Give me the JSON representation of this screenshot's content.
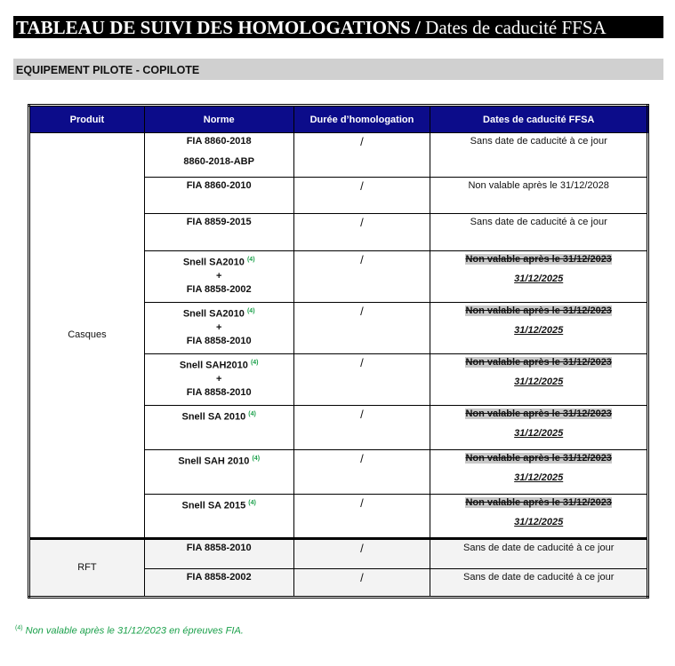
{
  "title": {
    "bold": "TABLEAU DE SUIVI DES HOMOLOGATIONS /",
    "regular": " Dates de caducité FFSA"
  },
  "section": "EQUIPEMENT PILOTE - COPILOTE",
  "headers": [
    "Produit",
    "Norme",
    "Durée d’homologation",
    "Dates de caducité FFSA"
  ],
  "groups": [
    {
      "product": "Casques",
      "rows": [
        {
          "norme": [
            "FIA 8860-2018",
            "8860-2018-ABP"
          ],
          "sup": "",
          "duree": "/",
          "date": "Sans date de caducité à ce jour",
          "struck": "",
          "new": ""
        },
        {
          "norme": [
            "FIA 8860-2010"
          ],
          "sup": "",
          "duree": "/",
          "date": "Non valable après le 31/12/2028",
          "struck": "",
          "new": ""
        },
        {
          "norme": [
            "FIA 8859-2015"
          ],
          "sup": "",
          "duree": "/",
          "date": "Sans date de caducité à ce jour",
          "struck": "",
          "new": ""
        },
        {
          "norme": [
            "Snell SA2010",
            "+",
            "FIA 8858-2002"
          ],
          "sup": "(4)",
          "duree": "/",
          "date": "",
          "struck": "Non valable après le 31/12/2023",
          "new": "31/12/2025"
        },
        {
          "norme": [
            "Snell SA2010",
            "+",
            "FIA 8858-2010"
          ],
          "sup": "(4)",
          "duree": "/",
          "date": "",
          "struck": "Non valable après le 31/12/2023",
          "new": "31/12/2025"
        },
        {
          "norme": [
            "Snell SAH2010",
            "+",
            "FIA 8858-2010"
          ],
          "sup": "(4)",
          "duree": "/",
          "date": "",
          "struck": "Non valable après le 31/12/2023",
          "new": "31/12/2025"
        },
        {
          "norme": [
            "Snell SA 2010"
          ],
          "sup": "(4)",
          "duree": "/",
          "date": "",
          "struck": "Non valable après le 31/12/2023",
          "new": "31/12/2025"
        },
        {
          "norme": [
            "Snell SAH 2010"
          ],
          "sup": "(4)",
          "duree": "/",
          "date": "",
          "struck": "Non valable après le 31/12/2023",
          "new": "31/12/2025"
        },
        {
          "norme": [
            "Snell SA 2015"
          ],
          "sup": "(4)",
          "duree": "/",
          "date": "",
          "struck": "Non valable après le 31/12/2023",
          "new": "31/12/2025"
        }
      ]
    },
    {
      "product": "RFT",
      "rows": [
        {
          "norme": [
            "FIA 8858-2010"
          ],
          "sup": "",
          "duree": "/",
          "date": "Sans de date de caducité à ce jour",
          "struck": "",
          "new": ""
        },
        {
          "norme": [
            "FIA 8858-2002"
          ],
          "sup": "",
          "duree": "/",
          "date": "Sans de date de caducité à ce jour",
          "struck": "",
          "new": ""
        }
      ]
    }
  ],
  "footnote": {
    "mark": "(4)",
    "text": " Non valable après le 31/12/2023 en épreuves FIA."
  },
  "colors": {
    "header_bg": "#0c0c8a",
    "footnote": "#1aa04a",
    "section_bg": "#d0d0d0"
  }
}
